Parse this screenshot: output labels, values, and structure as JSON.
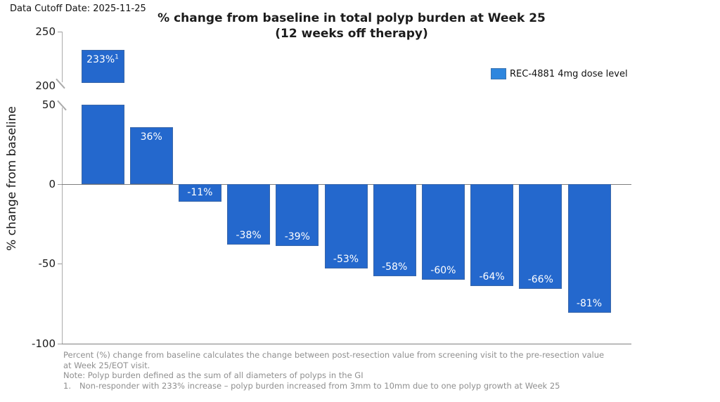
{
  "header": {
    "data_cutoff": "Data Cutoff Date: 2025-11-25"
  },
  "chart_data": {
    "type": "bar",
    "title": "% change from baseline in total polyp burden at Week 25",
    "subtitle": "(12 weeks off therapy)",
    "ylabel": "% change from baseline",
    "series_name": "REC-4881 4mg dose level",
    "values": [
      233,
      36,
      -11,
      -38,
      -39,
      -53,
      -58,
      -60,
      -64,
      -66,
      -81
    ],
    "bar_labels": [
      "233%",
      "36%",
      "-11%",
      "-38%",
      "-39%",
      "-53%",
      "-58%",
      "-60%",
      "-64%",
      "-66%",
      "-81%"
    ],
    "bar_label_superscripts": {
      "0": "1"
    },
    "bar_color": "#2468cd",
    "legend_swatch_color": "#2e86de",
    "grid": false,
    "legend_position": "top-right",
    "yaxis": {
      "broken_axis": true,
      "upper_ticks": [
        "250",
        "200"
      ],
      "lower_ticks": [
        "50",
        "0",
        "-50",
        "-100"
      ],
      "upper_range": [
        200,
        250
      ],
      "lower_range": [
        -100,
        50
      ]
    }
  },
  "footnotes": {
    "definition": "Percent (%) change from baseline calculates the change between post-resection value from screening visit to the pre-resection value at Week 25/EOT visit.",
    "note": "Note: Polyp burden defined as the sum of all diameters of polyps in the GI",
    "item1": {
      "marker": "1.",
      "text": "Non-responder with 233% increase – polyp burden increased from 3mm to 10mm due to one polyp growth at Week 25"
    }
  }
}
